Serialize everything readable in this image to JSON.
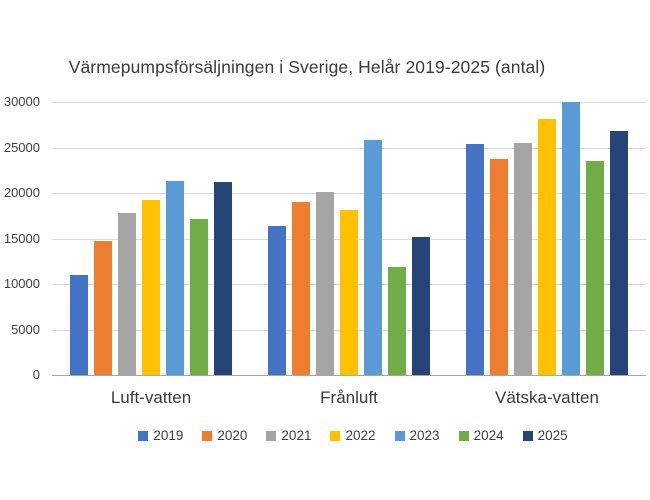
{
  "chart_data": {
    "type": "bar",
    "title": "Värmepumpsförsäljningen i Sverige, Helår 2019-2025 (antal)",
    "categories": [
      "Luft-vatten",
      "Frånluft",
      "Vätska-vatten"
    ],
    "series": [
      {
        "name": "2019",
        "color": "#4472C4",
        "values": [
          11000,
          16400,
          25400
        ]
      },
      {
        "name": "2020",
        "color": "#ED7D31",
        "values": [
          14700,
          19000,
          23700
        ]
      },
      {
        "name": "2021",
        "color": "#A5A5A5",
        "values": [
          17800,
          20100,
          25500
        ]
      },
      {
        "name": "2022",
        "color": "#FFC000",
        "values": [
          19200,
          18100,
          28100
        ]
      },
      {
        "name": "2023",
        "color": "#5B9BD5",
        "values": [
          21300,
          25800,
          30000
        ]
      },
      {
        "name": "2024",
        "color": "#70AD47",
        "values": [
          17100,
          11900,
          23500
        ]
      },
      {
        "name": "2025",
        "color": "#264478",
        "values": [
          21200,
          15200,
          26800
        ]
      }
    ],
    "ylim": [
      0,
      30000
    ],
    "ytick_interval": 5000,
    "yticks": [
      0,
      5000,
      10000,
      15000,
      20000,
      25000,
      30000
    ],
    "xlabel": "",
    "ylabel": "",
    "grid": true,
    "legend_position": "bottom",
    "gridline_color": "#D9D9D9",
    "axis_line_color": "#A6A6A6",
    "background_color": "#FFFFFF"
  }
}
